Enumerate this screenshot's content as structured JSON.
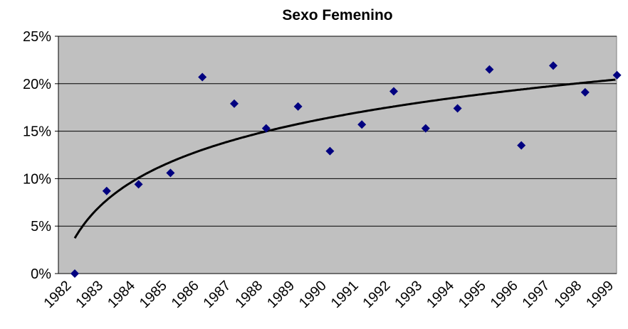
{
  "chart_data": {
    "type": "scatter",
    "title": "Sexo Femenino",
    "categories": [
      "1982",
      "1983",
      "1984",
      "1985",
      "1986",
      "1987",
      "1988",
      "1989",
      "1990",
      "1991",
      "1992",
      "1993",
      "1994",
      "1995",
      "1996",
      "1997",
      "1998",
      "1999"
    ],
    "series": [
      {
        "name": "Sexo Femenino",
        "color": "#000080",
        "values": [
          0,
          8.7,
          9.4,
          10.6,
          20.7,
          17.9,
          15.3,
          17.6,
          12.9,
          15.7,
          19.2,
          15.3,
          17.4,
          21.5,
          13.5,
          21.9,
          19.1,
          20.9
        ]
      }
    ],
    "trendline": "logarithmic",
    "ylim": [
      0,
      25
    ],
    "yticks": [
      {
        "value": 0,
        "label": "0%"
      },
      {
        "value": 5,
        "label": "5%"
      },
      {
        "value": 10,
        "label": "10%"
      },
      {
        "value": 15,
        "label": "15%"
      },
      {
        "value": 20,
        "label": "20%"
      },
      {
        "value": 25,
        "label": "25%"
      }
    ],
    "grid": true
  }
}
